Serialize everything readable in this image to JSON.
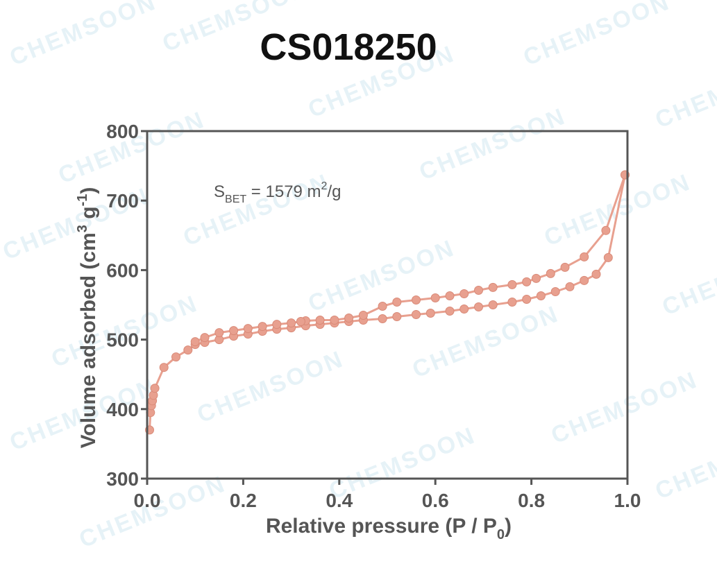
{
  "title": "CS018250",
  "watermark": "CHEMSOON",
  "annotation": {
    "prefix": "S",
    "sub": "BET",
    "body": " = 1579 m",
    "sup": "2",
    "suffix": "/g"
  },
  "xlabel": {
    "main": "Relative pressure (P / P",
    "sub": "0",
    "end": ")"
  },
  "ylabel": {
    "a": "Volume adsorbed (cm",
    "sup1": "3",
    "b": " g",
    "sup2": "-1",
    "c": ")"
  },
  "series_color": "#e8a08f",
  "axis_color": "#555555",
  "chart_data": {
    "type": "scatter",
    "title": "CS018250",
    "xlabel": "Relative pressure (P / P0)",
    "ylabel": "Volume adsorbed (cm3 g-1)",
    "xlim": [
      0.0,
      1.0
    ],
    "ylim": [
      300,
      800
    ],
    "xticks": [
      "0.0",
      "0.2",
      "0.4",
      "0.6",
      "0.8",
      "1.0"
    ],
    "yticks": [
      "300",
      "400",
      "500",
      "600",
      "700",
      "800"
    ],
    "grid": false,
    "legend": "none",
    "series": [
      {
        "x": [
          0.005,
          0.007,
          0.009,
          0.011,
          0.013,
          0.016,
          0.035,
          0.06,
          0.085,
          0.1,
          0.12,
          0.15,
          0.18,
          0.21,
          0.24,
          0.27,
          0.3,
          0.33,
          0.36,
          0.39,
          0.42,
          0.45,
          0.49,
          0.52,
          0.56,
          0.59,
          0.63,
          0.66,
          0.69,
          0.72,
          0.76,
          0.79,
          0.82,
          0.85,
          0.88,
          0.91,
          0.935,
          0.96,
          0.995
        ],
        "y": [
          370,
          395,
          405,
          412,
          420,
          430,
          460,
          475,
          485,
          493,
          496,
          500,
          505,
          508,
          512,
          515,
          517,
          520,
          522,
          524,
          526,
          528,
          530,
          533,
          536,
          538,
          541,
          544,
          547,
          550,
          554,
          558,
          563,
          569,
          576,
          585,
          594,
          618,
          737
        ]
      },
      {
        "x": [
          0.995,
          0.955,
          0.91,
          0.87,
          0.84,
          0.81,
          0.79,
          0.76,
          0.72,
          0.69,
          0.66,
          0.63,
          0.6,
          0.56,
          0.52,
          0.49,
          0.45,
          0.42,
          0.39,
          0.36,
          0.33,
          0.32,
          0.3,
          0.27,
          0.24,
          0.21,
          0.18,
          0.15,
          0.12,
          0.1
        ],
        "y": [
          737,
          657,
          619,
          604,
          595,
          588,
          583,
          579,
          575,
          571,
          566,
          563,
          560,
          557,
          554,
          548,
          535,
          531,
          528,
          528,
          527,
          526,
          524,
          522,
          519,
          516,
          513,
          510,
          503,
          497
        ]
      }
    ]
  }
}
